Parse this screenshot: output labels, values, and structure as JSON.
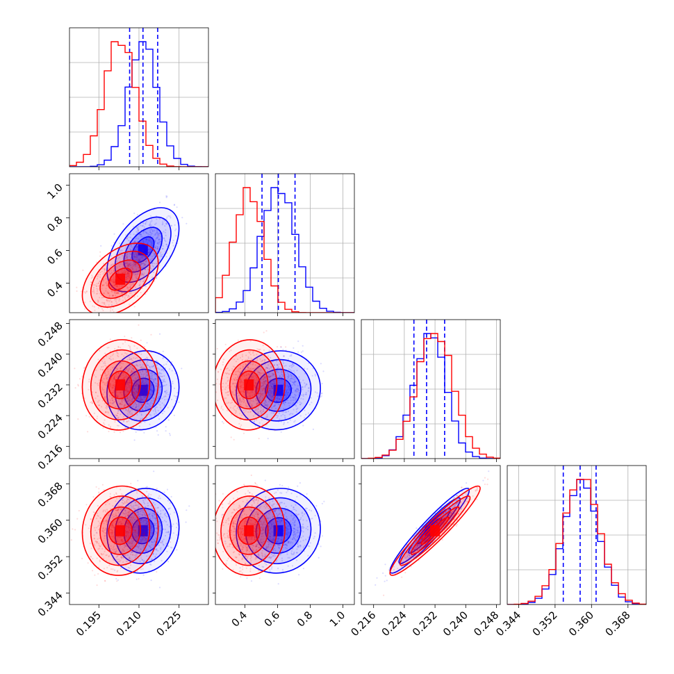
{
  "chart_data": {
    "type": "corner",
    "title": "",
    "parameters": [
      {
        "range": [
          0.184,
          0.236
        ],
        "ticks": [
          0.195,
          0.21,
          0.225
        ],
        "tick_labels": [
          "0.195",
          "0.210",
          "0.225"
        ]
      },
      {
        "range": [
          0.22,
          1.07
        ],
        "ticks": [
          0.4,
          0.6,
          0.8,
          1.0
        ],
        "tick_labels": [
          "0.4",
          "0.6",
          "0.8",
          "1.0"
        ]
      },
      {
        "range": [
          0.2128,
          0.249
        ],
        "ticks": [
          0.216,
          0.224,
          0.232,
          0.24,
          0.248
        ],
        "tick_labels": [
          "0.216",
          "0.224",
          "0.232",
          "0.240",
          "0.248"
        ]
      },
      {
        "range": [
          0.3415,
          0.372
        ],
        "ticks": [
          0.344,
          0.352,
          0.36,
          0.368
        ],
        "tick_labels": [
          "0.344",
          "0.352",
          "0.360",
          "0.368"
        ]
      }
    ],
    "series": [
      {
        "color": "#0000ff",
        "mean": [
          0.2115,
          0.605,
          0.2306,
          0.3577
        ],
        "std": [
          0.0055,
          0.105,
          0.0042,
          0.0038
        ],
        "correlation": [
          [
            1,
            0.5,
            0.08,
            0.08
          ],
          [
            0.5,
            1,
            0.05,
            0.05
          ],
          [
            0.08,
            0.05,
            1,
            0.95
          ],
          [
            0.08,
            0.05,
            0.95,
            1
          ]
        ],
        "quantile_lines": [
          [
            0.2065,
            0.2115,
            0.217
          ],
          [
            0.505,
            0.605,
            0.707
          ],
          [
            0.2265,
            0.2298,
            0.2345
          ],
          [
            0.3538,
            0.3575,
            0.361
          ]
        ]
      },
      {
        "color": "#ff0000",
        "mean": [
          0.203,
          0.425,
          0.232,
          0.3577
        ],
        "std": [
          0.0058,
          0.09,
          0.0048,
          0.004
        ],
        "correlation": [
          [
            1,
            0.45,
            0.05,
            0.05
          ],
          [
            0.45,
            1,
            0.03,
            0.03
          ],
          [
            0.05,
            0.03,
            1,
            0.95
          ],
          [
            0.05,
            0.03,
            0.95,
            1
          ]
        ],
        "quantile_lines": []
      }
    ],
    "grid": true,
    "legend": "none"
  }
}
